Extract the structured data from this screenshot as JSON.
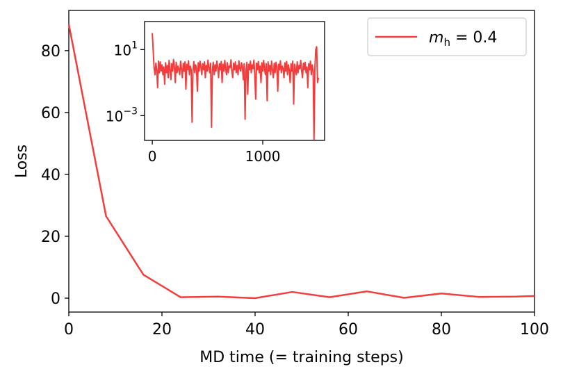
{
  "chart_data": [
    {
      "type": "line",
      "panel": "main",
      "xlabel": "MD time (= training steps)",
      "ylabel": "Loss",
      "xlim": [
        0,
        100
      ],
      "ylim": [
        -4.5,
        93
      ],
      "xticks": [
        0,
        20,
        40,
        60,
        80,
        100
      ],
      "yticks": [
        0,
        20,
        40,
        60,
        80
      ],
      "grid": false,
      "legend_position": "top-right",
      "legend": {
        "var": "m",
        "sub": "h",
        "rest": " = 0.4"
      },
      "series": [
        {
          "name": "m_h = 0.4",
          "color": "#f53c3c",
          "x": [
            0,
            8,
            16,
            24,
            32,
            40,
            48,
            56,
            64,
            72,
            80,
            88,
            96,
            100
          ],
          "y": [
            88.5,
            26.5,
            7.6,
            0.3,
            0.5,
            0.0,
            2.0,
            0.3,
            2.2,
            0.1,
            1.5,
            0.4,
            0.5,
            0.7
          ]
        }
      ]
    },
    {
      "type": "line",
      "panel": "inset",
      "yscale": "log",
      "xlim": [
        -70,
        1560
      ],
      "ylim_log10": [
        -4.5,
        2.7
      ],
      "xticks": [
        0,
        1000
      ],
      "yticks": [
        {
          "value": 10,
          "base": "10",
          "exp": "1"
        },
        {
          "value": 0.001,
          "base": "10",
          "exp": "−3"
        }
      ],
      "grid": false,
      "series": [
        {
          "name": "",
          "color": "#f53c3c",
          "x": [
            0,
            16,
            24,
            32,
            40,
            48,
            56,
            64,
            72,
            80,
            88,
            96,
            104,
            112,
            120,
            128,
            136,
            144,
            152,
            160,
            168,
            176,
            184,
            192,
            200,
            208,
            216,
            224,
            232,
            240,
            248,
            256,
            264,
            272,
            280,
            288,
            296,
            304,
            312,
            320,
            328,
            336,
            344,
            352,
            360,
            368,
            376,
            384,
            392,
            400,
            408,
            416,
            424,
            432,
            440,
            448,
            456,
            464,
            472,
            480,
            488,
            496,
            504,
            512,
            520,
            528,
            536,
            544,
            552,
            560,
            568,
            576,
            584,
            592,
            600,
            608,
            616,
            624,
            632,
            640,
            648,
            656,
            664,
            672,
            680,
            688,
            696,
            704,
            712,
            720,
            728,
            736,
            744,
            752,
            760,
            768,
            776,
            784,
            792,
            800,
            808,
            816,
            824,
            832,
            840,
            848,
            856,
            864,
            872,
            880,
            888,
            896,
            904,
            912,
            920,
            928,
            936,
            944,
            952,
            960,
            968,
            976,
            984,
            992,
            1000,
            1008,
            1016,
            1024,
            1032,
            1040,
            1048,
            1056,
            1064,
            1072,
            1080,
            1088,
            1096,
            1104,
            1112,
            1120,
            1128,
            1136,
            1144,
            1152,
            1160,
            1168,
            1176,
            1184,
            1192,
            1200,
            1208,
            1216,
            1224,
            1232,
            1240,
            1248,
            1256,
            1264,
            1272,
            1280,
            1288,
            1296,
            1304,
            1312,
            1320,
            1328,
            1336,
            1344,
            1352,
            1360,
            1368,
            1376,
            1384,
            1392,
            1400,
            1408,
            1416,
            1424,
            1432,
            1440,
            1448,
            1456,
            1464,
            1472,
            1480,
            1488,
            1496,
            1504
          ],
          "y": [
            100,
            0.8,
            0.3,
            1.5,
            0.6,
            0.05,
            2.0,
            0.4,
            1.8,
            0.5,
            1.2,
            0.3,
            0.9,
            0.08,
            1.6,
            0.4,
            1.1,
            0.2,
            2.2,
            0.6,
            0.15,
            1.4,
            0.5,
            2.5,
            0.9,
            0.1,
            1.7,
            0.4,
            1.0,
            0.6,
            0.3,
            2.0,
            0.7,
            0.2,
            1.5,
            0.5,
            1.8,
            0.04,
            1.3,
            0.6,
            2.1,
            0.3,
            1.0,
            0.6,
            0.0004,
            0.5,
            1.9,
            0.4,
            1.2,
            0.7,
            0.03,
            1.6,
            0.5,
            2.0,
            0.9,
            0.3,
            1.4,
            0.6,
            1.8,
            0.2,
            1.1,
            0.5,
            2.3,
            0.8,
            0.4,
            1.5,
            0.0002,
            0.6,
            1.7,
            0.3,
            1.2,
            0.5,
            2.0,
            0.9,
            0.2,
            1.4,
            0.6,
            1.9,
            0.1,
            1.3,
            0.5,
            2.2,
            0.7,
            0.3,
            1.6,
            0.4,
            1.0,
            0.8,
            2.4,
            0.5,
            0.2,
            1.5,
            0.6,
            1.8,
            0.4,
            1.1,
            0.3,
            2.1,
            0.7,
            0.5,
            1.6,
            0.9,
            0.15,
            1.4,
            0.0006,
            0.5,
            1.7,
            0.02,
            1.3,
            0.6,
            2.0,
            0.4,
            1.2,
            0.7,
            2.3,
            0.3,
            0.01,
            1.5,
            0.6,
            1.9,
            0.4,
            1.0,
            0.1,
            1.6,
            0.5,
            2.2,
            0.7,
            0.3,
            1.4,
            0.008,
            1.8,
            0.5,
            1.1,
            0.3,
            2.0,
            0.6,
            0.2,
            1.5,
            0.4,
            1.7,
            0.9,
            0.03,
            1.3,
            0.6,
            2.1,
            0.4,
            1.0,
            0.7,
            0.2,
            1.6,
            0.5,
            1.9,
            0.3,
            1.2,
            0.6,
            0.1,
            1.4,
            0.5,
            2.0,
            0.005,
            1.3,
            0.6,
            0.3,
            1.8,
            0.4,
            1.1,
            0.7,
            2.2,
            0.5,
            0.2,
            1.5,
            0.6,
            1.7,
            0.4,
            0.9,
            0.05,
            1.4,
            0.6,
            2.0,
            0.3,
            1.2,
            0.5,
            1e-05,
            0.8,
            10.0,
            15.0,
            0.1,
            0.2
          ]
        }
      ]
    }
  ]
}
